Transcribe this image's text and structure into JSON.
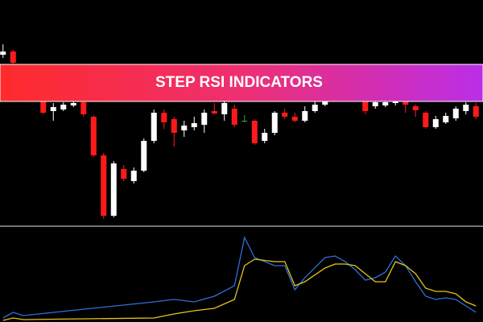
{
  "chart_data": [
    {
      "type": "candlestick",
      "title": "STEP RSI INDICATORS",
      "x": [
        0,
        1,
        4,
        5,
        6,
        7,
        8,
        9,
        10,
        11,
        12,
        13,
        14,
        15,
        16,
        17,
        18,
        19,
        20,
        21,
        22,
        23,
        24,
        25,
        26,
        27,
        28,
        29,
        30,
        31,
        32,
        36,
        37,
        38,
        39,
        40,
        41,
        42,
        43,
        44,
        45,
        46,
        47
      ],
      "open": [
        212,
        216,
        155,
        142,
        144,
        149,
        153,
        135,
        87,
        12,
        70,
        55,
        68,
        105,
        140,
        132,
        118,
        122,
        125,
        142,
        138,
        145,
        130,
        130,
        105,
        115,
        140,
        135,
        130,
        142,
        150,
        155,
        148,
        149,
        152,
        154,
        148,
        140,
        122,
        128,
        133,
        142,
        148
      ],
      "close": [
        216,
        202,
        140,
        147,
        150,
        152,
        138,
        87,
        12,
        77,
        58,
        68,
        105,
        140,
        128,
        115,
        124,
        127,
        140,
        139,
        152,
        125,
        130,
        102,
        115,
        140,
        135,
        130,
        142,
        150,
        154,
        142,
        153,
        153,
        156,
        150,
        143,
        122,
        132,
        136,
        145,
        150,
        135
      ],
      "high": [
        225,
        218,
        158,
        152,
        153,
        155,
        155,
        137,
        90,
        80,
        75,
        72,
        108,
        144,
        144,
        135,
        130,
        135,
        144,
        152,
        155,
        150,
        137,
        132,
        120,
        142,
        145,
        140,
        148,
        154,
        156,
        160,
        156,
        155,
        158,
        156,
        150,
        142,
        136,
        140,
        148,
        153,
        152
      ],
      "low": [
        208,
        200,
        138,
        130,
        142,
        147,
        135,
        85,
        8,
        10,
        55,
        52,
        66,
        102,
        120,
        98,
        110,
        118,
        115,
        138,
        130,
        122,
        128,
        100,
        102,
        112,
        132,
        128,
        128,
        140,
        148,
        138,
        145,
        147,
        149,
        140,
        135,
        120,
        120,
        126,
        130,
        138,
        132
      ],
      "xlim": [
        -0.3,
        47.7
      ],
      "ylim": [
        0,
        280
      ],
      "up_color": "#ffffff",
      "down_color": "#ff1a1a",
      "doji_color": "#2ea043"
    },
    {
      "type": "line",
      "x": [
        0,
        1,
        2,
        15,
        17,
        19,
        21,
        23,
        24,
        25,
        27,
        28,
        29,
        30,
        32,
        33,
        34,
        35,
        36,
        37,
        38,
        39,
        40,
        41,
        42,
        43,
        44,
        45,
        46,
        47
      ],
      "series": [
        {
          "color": "#2f6fd6",
          "values": [
            5,
            12,
            8,
            25,
            28,
            25,
            32,
            45,
            105,
            80,
            70,
            70,
            40,
            55,
            80,
            82,
            75,
            65,
            52,
            55,
            62,
            82,
            70,
            50,
            32,
            28,
            30,
            28,
            20,
            12
          ]
        },
        {
          "color": "#e6c619",
          "values": [
            2,
            5,
            3,
            5,
            10,
            14,
            17,
            28,
            70,
            78,
            75,
            75,
            45,
            50,
            67,
            72,
            72,
            70,
            60,
            50,
            50,
            75,
            70,
            60,
            42,
            38,
            38,
            35,
            25,
            20
          ]
        }
      ],
      "xlim": [
        -0.3,
        47.7
      ],
      "ylim": [
        0,
        117
      ]
    }
  ]
}
